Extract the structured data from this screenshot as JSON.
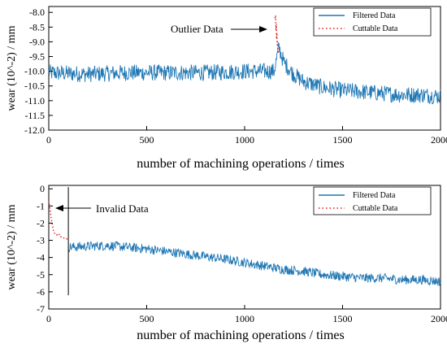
{
  "chart_data": [
    {
      "type": "line",
      "xlabel": "number of machining operations / times",
      "ylabel": "wear (10^-2) / mm",
      "xlim": [
        0,
        2000
      ],
      "ylim": [
        -12.0,
        -7.8
      ],
      "xticks": [
        0,
        500,
        1000,
        1500,
        2000
      ],
      "xtick_labels": [
        "0",
        "500",
        "1000",
        "1500",
        "2000"
      ],
      "yticks": [
        -8.0,
        -8.5,
        -9.0,
        -9.5,
        -10.0,
        -10.5,
        -11.0,
        -11.5,
        -12.0
      ],
      "ytick_labels": [
        "-8.0",
        "-8.5",
        "-9.0",
        "-9.5",
        "-10.0",
        "-10.5",
        "-11.0",
        "-11.5",
        "-12.0"
      ],
      "grid": false,
      "legend_position": "top-right",
      "annotations": [
        {
          "text": "Outlier Data",
          "x": 1165,
          "y": -8.6
        }
      ],
      "series": [
        {
          "name": "Filtered Data",
          "color": "#1f77b4",
          "style": "solid",
          "trend_x": [
            0,
            200,
            400,
            600,
            800,
            1000,
            1150,
            1175,
            1200,
            1250,
            1300,
            1400,
            1500,
            1600,
            1700,
            1800,
            1900,
            2000
          ],
          "trend_y": [
            -10.05,
            -10.1,
            -10.05,
            -10.05,
            -10.05,
            -10.0,
            -10.0,
            -9.2,
            -9.7,
            -10.1,
            -10.35,
            -10.55,
            -10.65,
            -10.7,
            -10.75,
            -10.8,
            -10.8,
            -10.85
          ],
          "noise_amplitude": 0.28
        },
        {
          "name": "Cuttable Data",
          "color": "#e31a1c",
          "style": "dotted",
          "x": [
            1155,
            1158,
            1160,
            1162,
            1163,
            1165,
            1166,
            1168,
            1170,
            1172
          ],
          "y": [
            -8.2,
            -8.1,
            -8.6,
            -8.4,
            -8.9,
            -8.7,
            -9.1,
            -9.0,
            -9.4,
            -9.3
          ]
        }
      ]
    },
    {
      "type": "line",
      "xlabel": "number of machining operations / times",
      "ylabel": "wear (10^-2) / mm",
      "xlim": [
        0,
        2000
      ],
      "ylim": [
        -7,
        0.2
      ],
      "xticks": [
        0,
        500,
        1000,
        1500,
        2000
      ],
      "xtick_labels": [
        "0",
        "500",
        "1000",
        "1500",
        "2000"
      ],
      "yticks": [
        0,
        -1,
        -2,
        -3,
        -4,
        -5,
        -6,
        -7
      ],
      "ytick_labels": [
        "0",
        "-1",
        "-2",
        "-3",
        "-4",
        "-5",
        "-6",
        "-7"
      ],
      "grid": false,
      "legend_position": "top-right",
      "vline_x": 100,
      "vline_range": [
        -6.2,
        0.1
      ],
      "annotations": [
        {
          "text": "Invalid Data",
          "x": 20,
          "y": -1.2
        }
      ],
      "series": [
        {
          "name": "Filtered Data",
          "color": "#1f77b4",
          "style": "solid",
          "trend_x": [
            100,
            300,
            500,
            700,
            900,
            1000,
            1100,
            1200,
            1300,
            1400,
            1500,
            1600,
            1700,
            1800,
            1900,
            2000
          ],
          "trend_y": [
            -3.4,
            -3.3,
            -3.5,
            -3.8,
            -4.1,
            -4.3,
            -4.5,
            -4.7,
            -4.8,
            -5.0,
            -5.1,
            -5.2,
            -5.2,
            -5.3,
            -5.3,
            -5.4
          ],
          "noise_amplitude": 0.28
        },
        {
          "name": "Cuttable Data",
          "color": "#e31a1c",
          "style": "dotted",
          "x": [
            0,
            5,
            10,
            15,
            20,
            25,
            30,
            40,
            50,
            60,
            70,
            80,
            90,
            100
          ],
          "y": [
            -0.7,
            -1.1,
            -1.5,
            -1.9,
            -2.2,
            -2.5,
            -2.6,
            -2.7,
            -2.6,
            -2.8,
            -2.8,
            -2.9,
            -2.9,
            -3.0
          ]
        }
      ]
    }
  ]
}
